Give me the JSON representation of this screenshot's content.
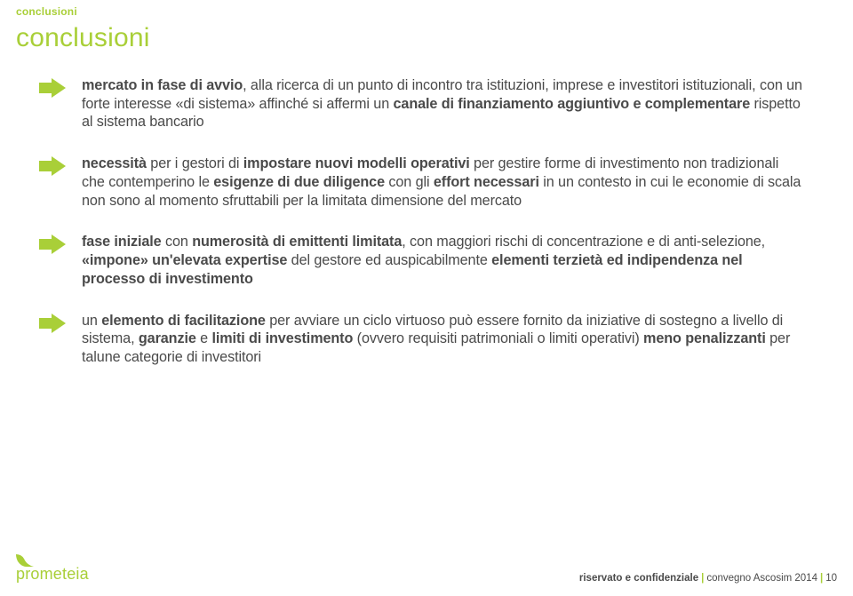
{
  "colors": {
    "accent": "#a9cf38",
    "text": "#4a4a4a",
    "background": "#ffffff"
  },
  "header": {
    "tag": "conclusioni",
    "title": "conclusioni"
  },
  "bullets": [
    {
      "html": "<b>mercato in fase di avvio</b>, alla ricerca di un punto di incontro tra istituzioni, imprese e investitori istituzionali, con un forte interesse «di sistema» affinché si affermi un <b>canale di finanziamento aggiuntivo e complementare</b> rispetto al sistema bancario"
    },
    {
      "html": "<b>necessità</b> per i gestori di <b>impostare nuovi modelli operativi</b> per gestire forme di investimento non tradizionali che contemperino le <b>esigenze di due diligence</b> con gli <b>effort necessari</b> in un contesto in cui le economie di scala non sono al momento sfruttabili per la limitata dimensione del mercato"
    },
    {
      "html": "<b>fase iniziale</b> con <b>numerosità di emittenti limitata</b>, con maggiori rischi di concentrazione e di anti-selezione, <b>«impone» un'elevata expertise</b> del gestore ed auspicabilmente <b>elementi terzietà ed indipendenza nel processo di investimento</b>"
    },
    {
      "html": "un <b>elemento di facilitazione</b> per avviare un ciclo virtuoso può essere fornito da iniziative di sostegno a livello di sistema, <b>garanzie</b> e <b>limiti di investimento</b> (ovvero requisiti patrimoniali o limiti operativi) <b>meno penalizzanti</b> per talune categorie di investitori"
    }
  ],
  "footer": {
    "brand": "prometeia",
    "confidential": "riservato e confidenziale",
    "event": "convegno Ascosim 2014",
    "page": "10"
  }
}
